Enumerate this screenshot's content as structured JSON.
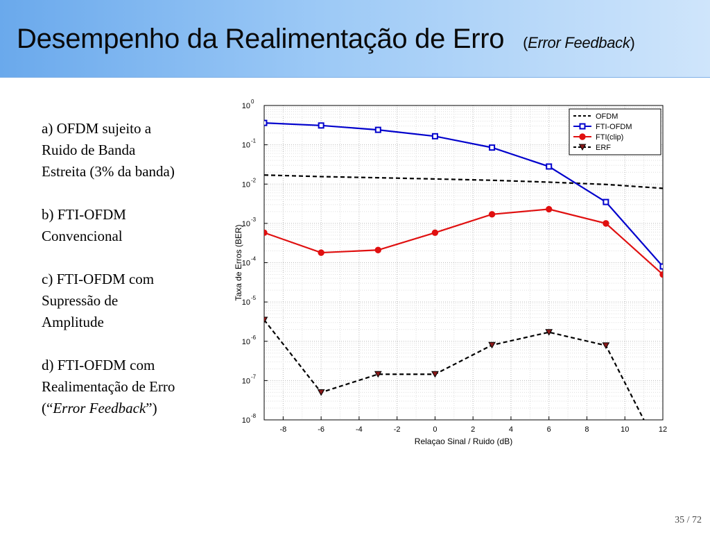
{
  "header": {
    "title": "Desempenho da Realimentação de Erro",
    "subtitle_open": "(",
    "subtitle_italic": "Error Feedback",
    "subtitle_close": ")"
  },
  "items": [
    {
      "line1": "a) OFDM sujeito a",
      "line2": "Ruido de Banda",
      "line3": "Estreita (3% da banda)"
    },
    {
      "line1": "b) FTI-OFDM",
      "line2": "Convencional"
    },
    {
      "line1": "c) FTI-OFDM com",
      "line2": "Supressão de",
      "line3": "Amplitude"
    },
    {
      "line1": "d) FTI-OFDM com",
      "line2": "Realimentação de Erro",
      "line3_open": "(“",
      "line3_italic": "Error Feedback",
      "line3_close": "”)"
    }
  ],
  "page_number": "35 / 72",
  "chart_data": {
    "type": "line",
    "xlabel": "Relaçao Sinal / Ruido (dB)",
    "ylabel": "Taxa de Erros (BER)",
    "xlim": [
      -9,
      12
    ],
    "ylim": [
      1e-08,
      1
    ],
    "y_scale": "log",
    "x_ticks": [
      -8,
      -6,
      -4,
      -2,
      0,
      2,
      4,
      6,
      8,
      10,
      12
    ],
    "y_tick_exponents": [
      0,
      -1,
      -2,
      -3,
      -4,
      -5,
      -6,
      -7,
      -8
    ],
    "grid": true,
    "legend_position": "top-right",
    "series": [
      {
        "name": "OFDM",
        "color": "#000000",
        "style": "dashed",
        "marker": "none",
        "x": [
          -9,
          -6,
          -3,
          0,
          3,
          6,
          9,
          12
        ],
        "y": [
          0.017,
          0.0155,
          0.0145,
          0.0135,
          0.0125,
          0.0112,
          0.0098,
          0.0078
        ]
      },
      {
        "name": "FTI-OFDM",
        "color": "#0000cc",
        "style": "solid",
        "marker": "square",
        "x": [
          -9,
          -6,
          -3,
          0,
          3,
          6,
          9,
          12
        ],
        "y": [
          0.36,
          0.31,
          0.24,
          0.165,
          0.085,
          0.028,
          0.0035,
          8e-05
        ]
      },
      {
        "name": "FTI(clip)",
        "color": "#e01010",
        "style": "solid",
        "marker": "circle",
        "x": [
          -9,
          -6,
          -3,
          0,
          3,
          6,
          9,
          12
        ],
        "y": [
          0.00058,
          0.00018,
          0.00021,
          0.00058,
          0.0017,
          0.0023,
          0.001,
          5e-05
        ]
      },
      {
        "name": "ERF",
        "color": "#000000",
        "style": "dashed",
        "marker": "triangle-down",
        "marker_fill": "#8b1a1a",
        "x": [
          -9,
          -6,
          -3,
          0,
          3,
          6,
          9,
          11
        ],
        "y": [
          3.5e-06,
          5e-08,
          1.45e-07,
          1.45e-07,
          8e-07,
          1.7e-06,
          7.8e-07,
          1e-08
        ]
      }
    ]
  }
}
